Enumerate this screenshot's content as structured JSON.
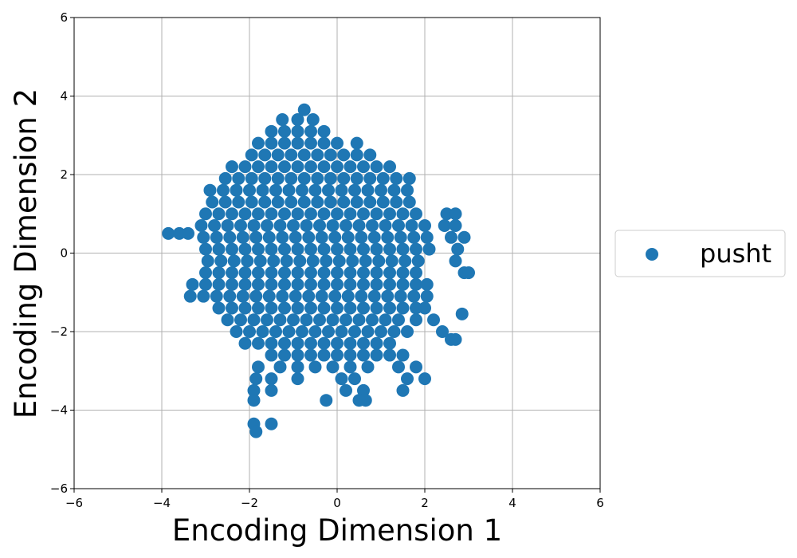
{
  "chart_data": {
    "type": "scatter",
    "xlabel": "Encoding Dimension 1",
    "ylabel": "Encoding Dimension 2",
    "xlim": [
      -6,
      6
    ],
    "ylim": [
      -6,
      6
    ],
    "xticks": [
      {
        "value": -6,
        "label": "−6"
      },
      {
        "value": -4,
        "label": "−4"
      },
      {
        "value": -2,
        "label": "−2"
      },
      0,
      2,
      4,
      6
    ],
    "yticks": [
      {
        "value": -6,
        "label": "−6"
      },
      {
        "value": -4,
        "label": "−4"
      },
      {
        "value": -2,
        "label": "−2"
      },
      0,
      2,
      4,
      6
    ],
    "grid": true,
    "legend": "outside right",
    "series": [
      {
        "name": "pusht",
        "color": "#1f77b4",
        "x": [
          -0.75,
          -1.25,
          -0.9,
          -0.55,
          -1.5,
          -1.2,
          -0.9,
          -0.6,
          -0.3,
          -1.8,
          -1.5,
          -1.2,
          -0.9,
          -0.6,
          -0.3,
          0.0,
          0.45,
          -1.95,
          -1.65,
          -1.35,
          -1.05,
          -0.75,
          -0.45,
          -0.15,
          0.15,
          0.45,
          0.75,
          -2.4,
          -2.1,
          -1.8,
          -1.5,
          -1.2,
          -0.9,
          -0.6,
          -0.3,
          0.0,
          0.3,
          0.6,
          0.9,
          1.2,
          -2.55,
          -2.25,
          -1.95,
          -1.65,
          -1.35,
          -1.05,
          -0.75,
          -0.45,
          -0.15,
          0.15,
          0.45,
          0.75,
          1.05,
          1.35,
          1.65,
          -2.9,
          -2.6,
          -2.3,
          -2.0,
          -1.7,
          -1.4,
          -1.1,
          -0.8,
          -0.5,
          -0.2,
          0.1,
          0.4,
          0.7,
          1.0,
          1.3,
          1.6,
          -2.85,
          -2.55,
          -2.25,
          -1.95,
          -1.65,
          -1.35,
          -1.05,
          -0.75,
          -0.45,
          -0.15,
          0.15,
          0.45,
          0.75,
          1.05,
          1.35,
          1.65,
          -3.0,
          -2.7,
          -2.4,
          -2.1,
          -1.8,
          -1.5,
          -1.2,
          -0.9,
          -0.6,
          -0.3,
          0.0,
          0.3,
          0.6,
          0.9,
          1.2,
          1.5,
          1.8,
          2.5,
          2.7,
          -3.1,
          -2.8,
          -2.5,
          -2.2,
          -1.9,
          -1.6,
          -1.3,
          -1.0,
          -0.7,
          -0.4,
          -0.1,
          0.2,
          0.5,
          0.8,
          1.1,
          1.4,
          1.7,
          2.0,
          2.45,
          2.7,
          -3.85,
          -3.6,
          -3.4,
          -3.05,
          -2.75,
          -2.45,
          -2.15,
          -1.85,
          -1.55,
          -1.25,
          -0.95,
          -0.65,
          -0.35,
          -0.05,
          0.25,
          0.55,
          0.85,
          1.15,
          1.45,
          1.75,
          2.05,
          2.6,
          2.9,
          -3.0,
          -2.7,
          -2.4,
          -2.1,
          -1.8,
          -1.5,
          -1.2,
          -0.9,
          -0.6,
          -0.3,
          0.0,
          0.3,
          0.6,
          0.9,
          1.2,
          1.5,
          1.8,
          2.1,
          2.75,
          -2.95,
          -2.65,
          -2.35,
          -2.05,
          -1.75,
          -1.45,
          -1.15,
          -0.85,
          -0.55,
          -0.25,
          0.05,
          0.35,
          0.65,
          0.95,
          1.25,
          1.55,
          1.85,
          2.7,
          -3.0,
          -2.7,
          -2.4,
          -2.1,
          -1.8,
          -1.5,
          -1.2,
          -0.9,
          -0.6,
          -0.3,
          0.0,
          0.3,
          0.6,
          0.9,
          1.2,
          1.5,
          1.8,
          2.9,
          3.0,
          -3.3,
          -3.0,
          -2.7,
          -2.4,
          -2.1,
          -1.8,
          -1.5,
          -1.2,
          -0.9,
          -0.6,
          -0.3,
          0.0,
          0.3,
          0.6,
          0.9,
          1.2,
          1.5,
          1.8,
          2.05,
          -3.35,
          -3.05,
          -2.75,
          -2.45,
          -2.15,
          -1.85,
          -1.55,
          -1.25,
          -0.95,
          -0.65,
          -0.35,
          -0.05,
          0.25,
          0.55,
          0.85,
          1.15,
          1.45,
          1.75,
          2.05,
          -2.7,
          -2.4,
          -2.1,
          -1.8,
          -1.5,
          -1.2,
          -0.9,
          -0.6,
          -0.3,
          0.0,
          0.3,
          0.6,
          0.9,
          1.2,
          1.5,
          1.8,
          2.0,
          2.85,
          -2.5,
          -2.2,
          -1.9,
          -1.6,
          -1.3,
          -1.0,
          -0.7,
          -0.4,
          -0.1,
          0.2,
          0.5,
          0.8,
          1.1,
          1.4,
          1.8,
          2.2,
          -2.3,
          -2.0,
          -1.7,
          -1.4,
          -1.1,
          -0.8,
          -0.5,
          -0.2,
          0.1,
          0.4,
          0.7,
          1.0,
          1.3,
          1.6,
          2.4,
          2.6,
          2.7,
          -2.1,
          -1.8,
          -1.5,
          -1.2,
          -0.9,
          -0.6,
          -0.3,
          0.0,
          0.3,
          0.6,
          0.9,
          1.2,
          -1.5,
          -1.2,
          -0.9,
          -0.6,
          -0.3,
          0.0,
          0.3,
          0.6,
          0.9,
          1.2,
          1.5,
          -1.8,
          -1.3,
          -0.9,
          -0.5,
          -0.1,
          0.3,
          0.7,
          1.4,
          1.8,
          -1.85,
          -1.5,
          -0.9,
          0.1,
          0.4,
          1.6,
          2.0,
          -1.9,
          -1.5,
          0.2,
          0.6,
          1.5,
          -1.9,
          -0.25,
          0.5,
          0.65,
          -1.9,
          -1.5,
          -1.85
        ],
        "values": [
          3.65,
          3.4,
          3.4,
          3.4,
          3.1,
          3.1,
          3.1,
          3.1,
          3.1,
          2.8,
          2.8,
          2.8,
          2.8,
          2.8,
          2.8,
          2.8,
          2.8,
          2.5,
          2.5,
          2.5,
          2.5,
          2.5,
          2.5,
          2.5,
          2.5,
          2.5,
          2.5,
          2.2,
          2.2,
          2.2,
          2.2,
          2.2,
          2.2,
          2.2,
          2.2,
          2.2,
          2.2,
          2.2,
          2.2,
          2.2,
          1.9,
          1.9,
          1.9,
          1.9,
          1.9,
          1.9,
          1.9,
          1.9,
          1.9,
          1.9,
          1.9,
          1.9,
          1.9,
          1.9,
          1.9,
          1.6,
          1.6,
          1.6,
          1.6,
          1.6,
          1.6,
          1.6,
          1.6,
          1.6,
          1.6,
          1.6,
          1.6,
          1.6,
          1.6,
          1.6,
          1.6,
          1.3,
          1.3,
          1.3,
          1.3,
          1.3,
          1.3,
          1.3,
          1.3,
          1.3,
          1.3,
          1.3,
          1.3,
          1.3,
          1.3,
          1.3,
          1.3,
          1.0,
          1.0,
          1.0,
          1.0,
          1.0,
          1.0,
          1.0,
          1.0,
          1.0,
          1.0,
          1.0,
          1.0,
          1.0,
          1.0,
          1.0,
          1.0,
          1.0,
          1.0,
          1.0,
          0.7,
          0.7,
          0.7,
          0.7,
          0.7,
          0.7,
          0.7,
          0.7,
          0.7,
          0.7,
          0.7,
          0.7,
          0.7,
          0.7,
          0.7,
          0.7,
          0.7,
          0.7,
          0.7,
          0.7,
          0.5,
          0.5,
          0.5,
          0.4,
          0.4,
          0.4,
          0.4,
          0.4,
          0.4,
          0.4,
          0.4,
          0.4,
          0.4,
          0.4,
          0.4,
          0.4,
          0.4,
          0.4,
          0.4,
          0.4,
          0.4,
          0.4,
          0.4,
          0.1,
          0.1,
          0.1,
          0.1,
          0.1,
          0.1,
          0.1,
          0.1,
          0.1,
          0.1,
          0.1,
          0.1,
          0.1,
          0.1,
          0.1,
          0.1,
          0.1,
          0.1,
          0.1,
          -0.2,
          -0.2,
          -0.2,
          -0.2,
          -0.2,
          -0.2,
          -0.2,
          -0.2,
          -0.2,
          -0.2,
          -0.2,
          -0.2,
          -0.2,
          -0.2,
          -0.2,
          -0.2,
          -0.2,
          -0.2,
          -0.5,
          -0.5,
          -0.5,
          -0.5,
          -0.5,
          -0.5,
          -0.5,
          -0.5,
          -0.5,
          -0.5,
          -0.5,
          -0.5,
          -0.5,
          -0.5,
          -0.5,
          -0.5,
          -0.5,
          -0.5,
          -0.5,
          -0.8,
          -0.8,
          -0.8,
          -0.8,
          -0.8,
          -0.8,
          -0.8,
          -0.8,
          -0.8,
          -0.8,
          -0.8,
          -0.8,
          -0.8,
          -0.8,
          -0.8,
          -0.8,
          -0.8,
          -0.8,
          -0.8,
          -1.1,
          -1.1,
          -1.1,
          -1.1,
          -1.1,
          -1.1,
          -1.1,
          -1.1,
          -1.1,
          -1.1,
          -1.1,
          -1.1,
          -1.1,
          -1.1,
          -1.1,
          -1.1,
          -1.1,
          -1.1,
          -1.1,
          -1.4,
          -1.4,
          -1.4,
          -1.4,
          -1.4,
          -1.4,
          -1.4,
          -1.4,
          -1.4,
          -1.4,
          -1.4,
          -1.4,
          -1.4,
          -1.4,
          -1.4,
          -1.4,
          -1.4,
          -1.55,
          -1.7,
          -1.7,
          -1.7,
          -1.7,
          -1.7,
          -1.7,
          -1.7,
          -1.7,
          -1.7,
          -1.7,
          -1.7,
          -1.7,
          -1.7,
          -1.7,
          -1.7,
          -1.7,
          -2.0,
          -2.0,
          -2.0,
          -2.0,
          -2.0,
          -2.0,
          -2.0,
          -2.0,
          -2.0,
          -2.0,
          -2.0,
          -2.0,
          -2.0,
          -2.0,
          -2.0,
          -2.2,
          -2.2,
          -2.3,
          -2.3,
          -2.3,
          -2.3,
          -2.3,
          -2.3,
          -2.3,
          -2.3,
          -2.3,
          -2.3,
          -2.3,
          -2.3,
          -2.6,
          -2.6,
          -2.6,
          -2.6,
          -2.6,
          -2.6,
          -2.6,
          -2.6,
          -2.6,
          -2.6,
          -2.6,
          -2.9,
          -2.9,
          -2.9,
          -2.9,
          -2.9,
          -2.9,
          -2.9,
          -2.9,
          -2.9,
          -3.2,
          -3.2,
          -3.2,
          -3.2,
          -3.2,
          -3.2,
          -3.2,
          -3.5,
          -3.5,
          -3.5,
          -3.5,
          -3.5,
          -3.75,
          -3.75,
          -3.75,
          -3.75,
          -4.35,
          -4.35,
          -4.55
        ]
      }
    ]
  }
}
